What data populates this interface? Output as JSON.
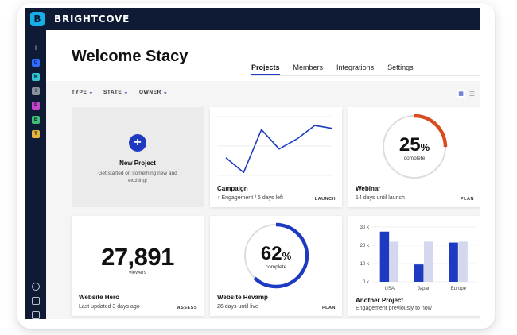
{
  "app": {
    "brand": "BRIGHTCOVE",
    "logo_letter": "B"
  },
  "sidebar": {
    "items": [
      {
        "label": "+",
        "color": ""
      },
      {
        "label": "C",
        "color": "#2f6bff"
      },
      {
        "label": "M",
        "color": "#35c4d6"
      },
      {
        "label": "I",
        "color": "#8a8f9c"
      },
      {
        "label": "P",
        "color": "#c445c9"
      },
      {
        "label": "B",
        "color": "#3fbf74"
      },
      {
        "label": "T",
        "color": "#e7b23d"
      }
    ],
    "bottom_icons": [
      "settings-icon",
      "export-icon",
      "inbox-icon"
    ]
  },
  "header": {
    "title": "Welcome Stacy"
  },
  "tabs": [
    {
      "label": "Projects",
      "active": true
    },
    {
      "label": "Members",
      "active": false
    },
    {
      "label": "Integrations",
      "active": false
    },
    {
      "label": "Settings",
      "active": false
    }
  ],
  "filters": {
    "type": "TYPE",
    "state": "STATE",
    "owner": "OWNER"
  },
  "cards": {
    "new_project": {
      "title": "New Project",
      "description": "Get started on something new and exciting!"
    },
    "campaign": {
      "title": "Campaign",
      "subtitle": "Engagement / 5 days left",
      "badge": "LAUNCH",
      "line_values": [
        30,
        5,
        78,
        45,
        62,
        85,
        80
      ]
    },
    "webinar": {
      "title": "Webinar",
      "subtitle": "14 days until launch",
      "badge": "PLAN",
      "percent": 25,
      "percent_text": "25",
      "caption": "complete"
    },
    "website_hero": {
      "title": "Website Hero",
      "subtitle": "Last updated 3 days ago",
      "badge": "ASSESS",
      "value": "27,891",
      "caption": "viewers"
    },
    "website_revamp": {
      "title": "Website Revamp",
      "subtitle": "26 days until live",
      "badge": "PLAN",
      "percent": 62,
      "percent_text": "62",
      "caption": "complete"
    },
    "another_project": {
      "title": "Another Project",
      "subtitle": "Engagement previously to now"
    }
  },
  "chart_data": [
    {
      "type": "line",
      "title": "Campaign",
      "x": [
        0,
        1,
        2,
        3,
        4,
        5,
        6
      ],
      "values": [
        30,
        5,
        78,
        45,
        62,
        85,
        80
      ],
      "ylim": [
        0,
        100
      ],
      "grid": true
    },
    {
      "type": "bar",
      "title": "Another Project",
      "categories": [
        "USA",
        "Japan",
        "Europe"
      ],
      "series": [
        {
          "name": "now",
          "values": [
            27.5,
            9.5,
            21.5
          ],
          "color": "#1e3ac0"
        },
        {
          "name": "previously",
          "values": [
            22,
            22,
            22
          ],
          "color": "#d3d8ee"
        }
      ],
      "yticks": [
        "30 k",
        "20 k",
        "10 k",
        "0 k"
      ],
      "ylim": [
        0,
        30
      ]
    }
  ],
  "colors": {
    "accent": "#1e3ac0",
    "sidebar": "#0f1a35",
    "warning": "#d94a1e"
  }
}
